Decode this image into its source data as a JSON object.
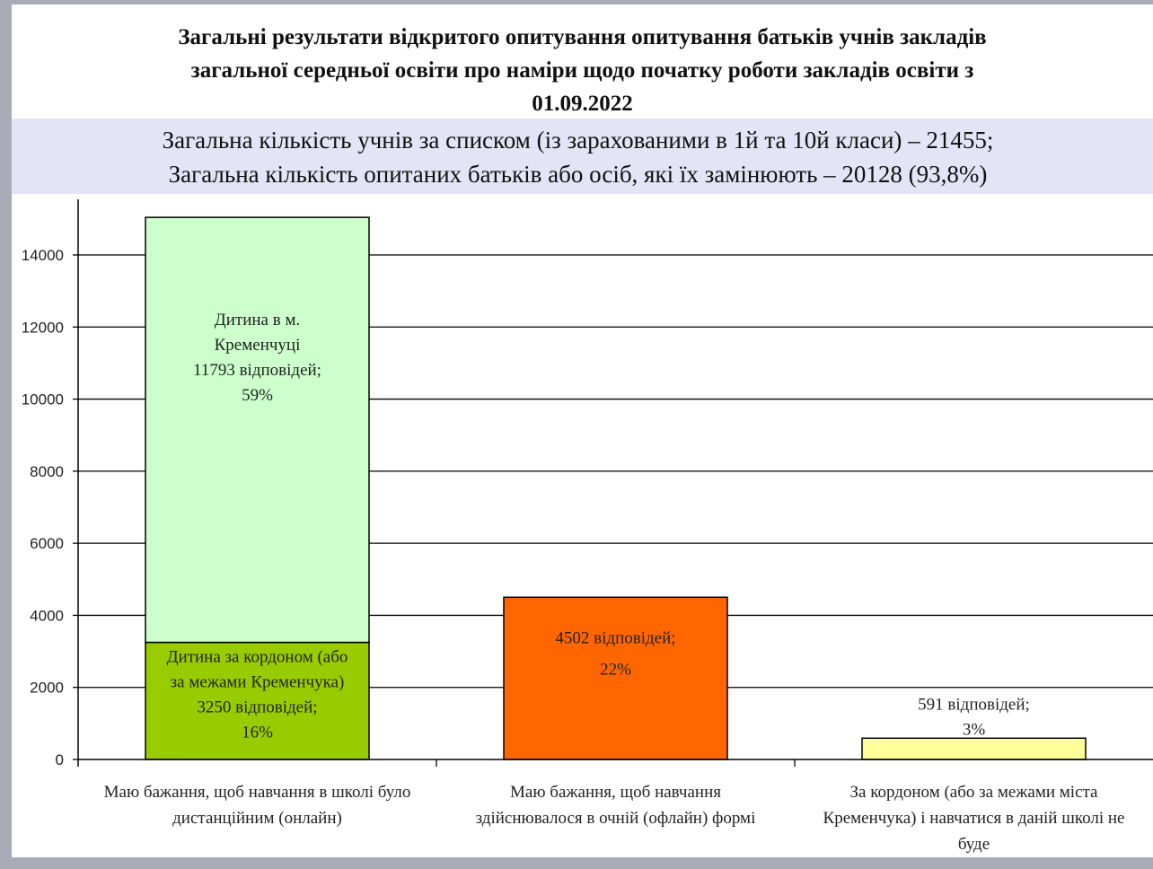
{
  "title": {
    "lines": [
      "Загальні результати відкритого опитування опитування батьків учнів закладів",
      "загальної середньої освіти про наміри щодо початку роботи закладів освіти з",
      "01.09.2022"
    ]
  },
  "summary": {
    "lines": [
      "Загальна кількість учнів за списком (із зарахованими в 1й та 10й класи) – 21455;",
      "Загальна кількість опитаних батьків або осіб, які їх замінюють – 20128  (93,8%)"
    ]
  },
  "chart_data": {
    "type": "bar",
    "stacked": true,
    "categories": [
      [
        "Маю бажання, щоб  навчання в школі було",
        "дистанційним (онлайн)"
      ],
      [
        "Маю бажання, щоб навчання",
        "здійснювалося в очній (офлайн) формі"
      ],
      [
        "За кордоном (або за межами міста",
        "Кременчука) і навчатися в даній школі не",
        "буде"
      ]
    ],
    "segments": [
      {
        "category": 0,
        "value": 3250,
        "color": "#99cc00",
        "label": [
          "Дитина за кордоном (або",
          "за межами Кременчука)",
          "3250 відповідей;",
          "16%"
        ]
      },
      {
        "category": 0,
        "value": 11793,
        "color": "#ccffcc",
        "label": [
          "Дитина в  м.",
          "Кременчуці",
          "11793 відповідей;",
          "59%"
        ]
      },
      {
        "category": 1,
        "value": 4502,
        "color": "#ff6600",
        "label": [
          "4502 відповідей;",
          "22%"
        ]
      },
      {
        "category": 2,
        "value": 591,
        "color": "#ffff99",
        "label": [
          "591 відповідей;",
          "3%"
        ]
      }
    ],
    "yticks": [
      "0",
      "2000",
      "4000",
      "6000",
      "8000",
      "10000",
      "12000",
      "14000"
    ],
    "ylim": [
      0,
      15500
    ],
    "grid": true,
    "xlabel": "",
    "ylabel": ""
  }
}
